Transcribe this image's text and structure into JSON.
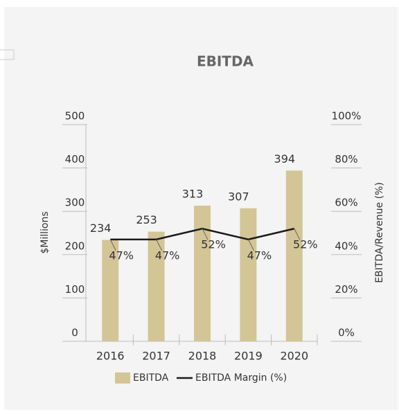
{
  "chart_data": {
    "type": "bar_line",
    "title": "EBITDA",
    "categories": [
      "2016",
      "2017",
      "2018",
      "2019",
      "2020"
    ],
    "series": [
      {
        "name": "EBITDA",
        "color": "#d3c595",
        "values": [
          234,
          253,
          313,
          307,
          394
        ]
      },
      {
        "name": "EBITDA Margin (%)",
        "color": "#1a1a1a",
        "axis": "y2",
        "values": [
          47,
          47,
          52,
          47,
          52
        ],
        "value_labels": [
          "47%",
          "47%",
          "52%",
          "47%",
          "52%"
        ]
      }
    ],
    "ylabel": "$Millions",
    "y2label": "EBITDA/Revenue (%)",
    "ylim": [
      0,
      500
    ],
    "yticks": [
      0,
      100,
      200,
      300,
      400,
      500
    ],
    "y2lim": [
      0,
      100
    ],
    "y2ticks": [
      {
        "value": 0,
        "label": "0%"
      },
      {
        "value": 20,
        "label": "20%"
      },
      {
        "value": 40,
        "label": "40%"
      },
      {
        "value": 60,
        "label": "60%"
      },
      {
        "value": 80,
        "label": "80%"
      },
      {
        "value": 100,
        "label": "100%"
      }
    ],
    "legend": "bottom"
  }
}
